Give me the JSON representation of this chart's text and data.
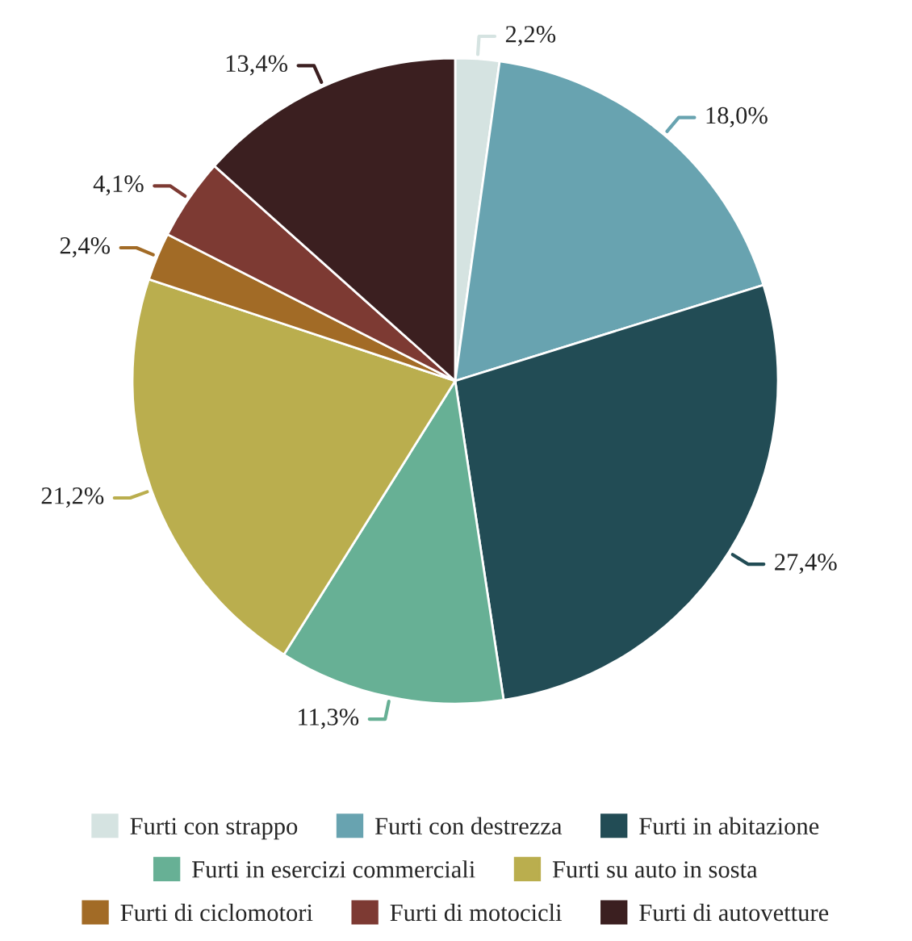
{
  "chart_data": {
    "type": "pie",
    "categories": [
      "Furti con strappo",
      "Furti con destrezza",
      "Furti in abitazione",
      "Furti in esercizi commerciali",
      "Furti su auto in sosta",
      "Furti di ciclomotori",
      "Furti di motocicli",
      "Furti di autovetture"
    ],
    "values": [
      2.2,
      18.0,
      27.4,
      11.3,
      21.2,
      2.4,
      4.1,
      13.4
    ],
    "value_labels": [
      "2,2%",
      "18,0%",
      "27,4%",
      "11,3%",
      "21,2%",
      "2,4%",
      "4,1%",
      "13,4%"
    ],
    "colors": [
      "#d5e3e1",
      "#68a3b0",
      "#224c55",
      "#67b095",
      "#baae4e",
      "#a26b26",
      "#7d3a33",
      "#3b1f20"
    ],
    "legend": "bottom"
  }
}
